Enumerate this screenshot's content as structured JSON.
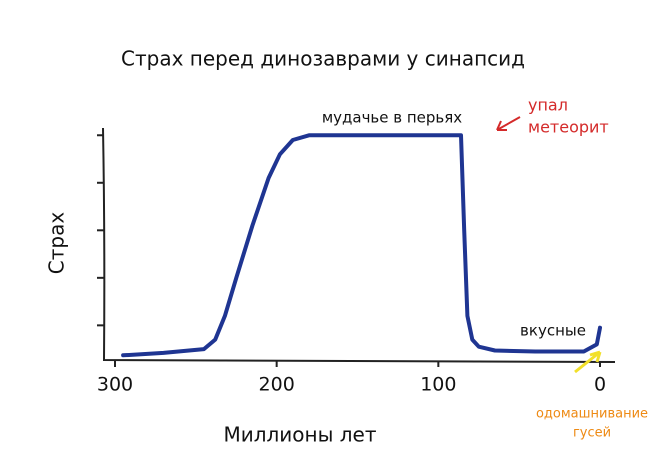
{
  "chart_data": {
    "type": "line",
    "title": "Страх перед динозаврами у синапсид",
    "x_label": "Миллионы лет",
    "y_label": "Страх",
    "x": [
      295,
      270,
      245,
      238,
      232,
      225,
      215,
      205,
      198,
      190,
      180,
      150,
      120,
      86,
      84,
      82,
      79,
      75,
      65,
      40,
      10,
      2,
      0
    ],
    "series": [
      {
        "name": "Страх",
        "color": "#1f3592",
        "values": [
          0.37,
          0.42,
          0.5,
          0.7,
          1.2,
          2.0,
          3.1,
          4.1,
          4.6,
          4.9,
          5.0,
          5.0,
          5.0,
          5.0,
          3.0,
          1.2,
          0.7,
          0.55,
          0.47,
          0.45,
          0.45,
          0.6,
          0.95
        ]
      }
    ],
    "xlim": [
      310,
      -10
    ],
    "xticks": [
      300,
      200,
      100,
      0
    ],
    "ylim": [
      0.25,
      5.3
    ],
    "yticks": [
      1,
      2,
      3,
      4,
      5
    ],
    "annotations": [
      {
        "lines": [
          "мудачье в перьях"
        ],
        "color": "#111111"
      },
      {
        "lines": [
          "упал",
          "метеорит"
        ],
        "color": "#d42a2a"
      },
      {
        "lines": [
          "вкусные"
        ],
        "color": "#111111"
      },
      {
        "lines": [
          "одомашнивание",
          "гусей"
        ],
        "color": "#ee8a14"
      }
    ]
  }
}
